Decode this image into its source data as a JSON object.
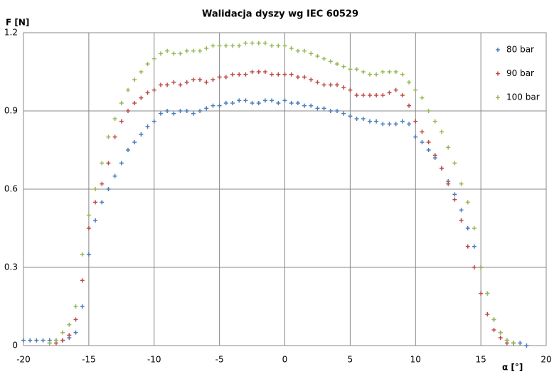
{
  "chart_data": {
    "type": "scatter",
    "title": "Walidacja dyszy wg IEC 60529",
    "y_label": "F [N]",
    "x_label": "α [°]",
    "xlim": [
      -20,
      20
    ],
    "xticks": [
      -20,
      -15,
      -10,
      -5,
      0,
      5,
      10,
      15,
      20
    ],
    "ylim": [
      0,
      1.2
    ],
    "yticks": [
      0,
      0.3,
      0.6,
      0.9,
      1.2
    ],
    "grid": true,
    "legend": "top-right",
    "x": [
      -20,
      -19.5,
      -19,
      -18.5,
      -18,
      -17.5,
      -17,
      -16.5,
      -16,
      -15.5,
      -15,
      -14.5,
      -14,
      -13.5,
      -13,
      -12.5,
      -12,
      -11.5,
      -11,
      -10.5,
      -10,
      -9.5,
      -9,
      -8.5,
      -8,
      -7.5,
      -7,
      -6.5,
      -6,
      -5.5,
      -5,
      -4.5,
      -4,
      -3.5,
      -3,
      -2.5,
      -2,
      -1.5,
      -1,
      -0.5,
      0,
      0.5,
      1,
      1.5,
      2,
      2.5,
      3,
      3.5,
      4,
      4.5,
      5,
      5.5,
      6,
      6.5,
      7,
      7.5,
      8,
      8.5,
      9,
      9.5,
      10,
      10.5,
      11,
      11.5,
      12,
      12.5,
      13,
      13.5,
      14,
      14.5,
      15,
      15.5,
      16,
      16.5,
      17,
      17.5,
      18,
      18.5
    ],
    "series": [
      {
        "name": "80 bar",
        "color": "#4a7ebb",
        "values": [
          0.02,
          0.02,
          0.02,
          0.02,
          0.02,
          0.02,
          0.02,
          0.03,
          0.05,
          0.15,
          0.35,
          0.48,
          0.55,
          0.6,
          0.65,
          0.7,
          0.75,
          0.78,
          0.81,
          0.84,
          0.86,
          0.89,
          0.9,
          0.89,
          0.9,
          0.9,
          0.89,
          0.9,
          0.91,
          0.92,
          0.92,
          0.93,
          0.93,
          0.94,
          0.94,
          0.93,
          0.93,
          0.94,
          0.94,
          0.93,
          0.94,
          0.93,
          0.93,
          0.92,
          0.92,
          0.91,
          0.91,
          0.9,
          0.9,
          0.89,
          0.88,
          0.87,
          0.87,
          0.86,
          0.86,
          0.85,
          0.85,
          0.85,
          0.86,
          0.85,
          0.8,
          0.78,
          0.75,
          0.72,
          0.68,
          0.63,
          0.58,
          0.52,
          0.45,
          0.38,
          0.3,
          0.2,
          0.1,
          0.05,
          0.02,
          0.01,
          0.01,
          0
        ]
      },
      {
        "name": "90 bar",
        "color": "#be4b48",
        "values": [
          null,
          null,
          null,
          null,
          0.01,
          0.01,
          0.02,
          0.04,
          0.1,
          0.25,
          0.45,
          0.55,
          0.62,
          0.7,
          0.8,
          0.86,
          0.9,
          0.93,
          0.95,
          0.97,
          0.98,
          1,
          1,
          1.01,
          1,
          1.01,
          1.02,
          1.02,
          1.01,
          1.02,
          1.03,
          1.03,
          1.04,
          1.04,
          1.04,
          1.05,
          1.05,
          1.05,
          1.04,
          1.04,
          1.04,
          1.04,
          1.03,
          1.03,
          1.02,
          1.01,
          1,
          1,
          1,
          0.99,
          0.98,
          0.96,
          0.96,
          0.96,
          0.96,
          0.96,
          0.97,
          0.98,
          0.96,
          0.92,
          0.86,
          0.82,
          0.78,
          0.73,
          0.68,
          0.62,
          0.56,
          0.48,
          0.38,
          0.3,
          0.2,
          0.12,
          0.06,
          0.03,
          0.01,
          0.01,
          null,
          null
        ]
      },
      {
        "name": "100 bar",
        "color": "#98b954",
        "values": [
          null,
          null,
          null,
          null,
          0.01,
          0.02,
          0.05,
          0.08,
          0.15,
          0.35,
          0.5,
          0.6,
          0.7,
          0.8,
          0.87,
          0.93,
          0.98,
          1.02,
          1.05,
          1.08,
          1.1,
          1.12,
          1.13,
          1.12,
          1.12,
          1.13,
          1.13,
          1.13,
          1.14,
          1.15,
          1.15,
          1.15,
          1.15,
          1.15,
          1.16,
          1.16,
          1.16,
          1.16,
          1.15,
          1.15,
          1.15,
          1.14,
          1.13,
          1.13,
          1.12,
          1.11,
          1.1,
          1.09,
          1.08,
          1.07,
          1.06,
          1.06,
          1.05,
          1.04,
          1.04,
          1.05,
          1.05,
          1.05,
          1.04,
          1.01,
          0.98,
          0.95,
          0.9,
          0.86,
          0.82,
          0.76,
          0.7,
          0.62,
          0.55,
          0.45,
          0.3,
          0.2,
          0.1,
          0.05,
          0.02,
          0.01,
          null,
          null
        ]
      }
    ]
  }
}
